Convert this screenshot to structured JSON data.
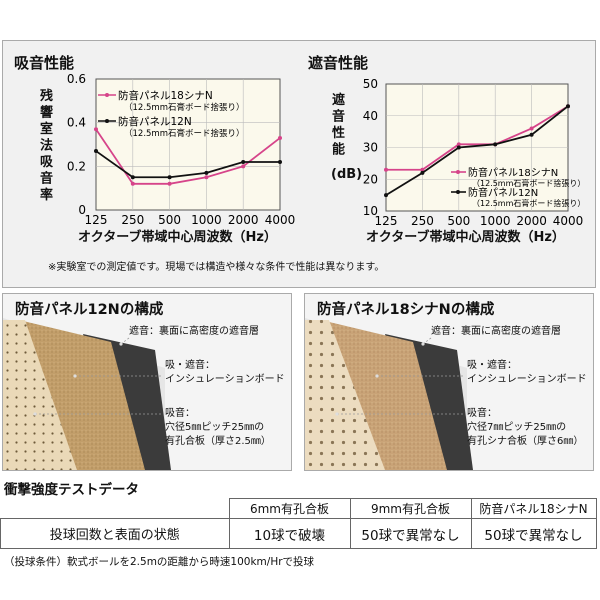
{
  "chart_data": [
    {
      "type": "line",
      "title": "吸音性能",
      "ylabel": "残響室法吸音率",
      "xlabel": "オクターブ帯域中心周波数（Hz）",
      "categories": [
        "125",
        "250",
        "500",
        "1000",
        "2000",
        "4000"
      ],
      "ylim": [
        0,
        0.6
      ],
      "yticks": [
        "0",
        "0.2",
        "0.4",
        "0.6"
      ],
      "grid": true,
      "legend_position": "top-right",
      "series": [
        {
          "name": "防音パネル18シナN",
          "note": "（12.5mm石膏ボード捨張り）",
          "color": "#d6448a",
          "marker": "dot",
          "values": [
            0.37,
            0.12,
            0.12,
            0.15,
            0.2,
            0.33
          ]
        },
        {
          "name": "防音パネル12N",
          "note": "（12.5mm石膏ボード捨張り）",
          "color": "#111111",
          "marker": "dot",
          "values": [
            0.27,
            0.15,
            0.15,
            0.17,
            0.22,
            0.22
          ]
        }
      ]
    },
    {
      "type": "line",
      "title": "遮音性能",
      "ylabel": "遮音性能",
      "yunit": "(dB)",
      "xlabel": "オクターブ帯域中心周波数（Hz）",
      "categories": [
        "125",
        "250",
        "500",
        "1000",
        "2000",
        "4000"
      ],
      "ylim": [
        10,
        50
      ],
      "yticks": [
        "10",
        "20",
        "30",
        "40",
        "50"
      ],
      "grid": true,
      "legend_position": "bottom-right",
      "series": [
        {
          "name": "防音パネル18シナN",
          "note": "（12.5mm石膏ボード捨張り）",
          "color": "#d6448a",
          "marker": "dot",
          "values": [
            23,
            23,
            31,
            31,
            36,
            43
          ]
        },
        {
          "name": "防音パネル12N",
          "note": "（12.5mm石膏ボード捨張り）",
          "color": "#111111",
          "marker": "dot",
          "values": [
            15,
            22,
            30,
            31,
            34,
            43
          ]
        }
      ]
    }
  ],
  "note": "※実験室での測定値です。現場では構造や様々な条件で性能は異なります。",
  "panels": [
    {
      "title": "防音パネル12Nの構成",
      "colors": {
        "face": "#ead9b8",
        "insulation": "#c29e6a",
        "sheet": "#3b3b3b"
      },
      "labels": {
        "layer1": "遮音：裏面に高密度の遮音層",
        "layer2a": "吸・遮音：",
        "layer2b": "インシュレーションボード",
        "layer3a": "吸音：",
        "layer3b": "穴径5㎜ピッチ25㎜の",
        "layer3c": "有孔合板（厚さ2.5㎜）"
      }
    },
    {
      "title": "防音パネル18シナNの構成",
      "colors": {
        "face": "#ecdcc0",
        "insulation": "#c9a377",
        "sheet": "#3b3b3b"
      },
      "labels": {
        "layer1": "遮音：裏面に高密度の遮音層",
        "layer2a": "吸・遮音：",
        "layer2b": "インシュレーションボード",
        "layer3a": "吸音：",
        "layer3b": "穴径7㎜ピッチ25㎜の",
        "layer3c": "有孔シナ合板（厚さ6㎜）"
      }
    }
  ],
  "impact": {
    "title": "衝撃強度テストデータ",
    "headers": [
      "",
      "6mm有孔合板",
      "9mm有孔合板",
      "防音パネル18シナN"
    ],
    "row_label": "投球回数と表面の状態",
    "values": [
      "10球で破壊",
      "50球で異常なし",
      "50球で異常なし"
    ],
    "condition": "（投球条件）軟式ボールを2.5mの距離から時速100km/Hrで投球"
  }
}
